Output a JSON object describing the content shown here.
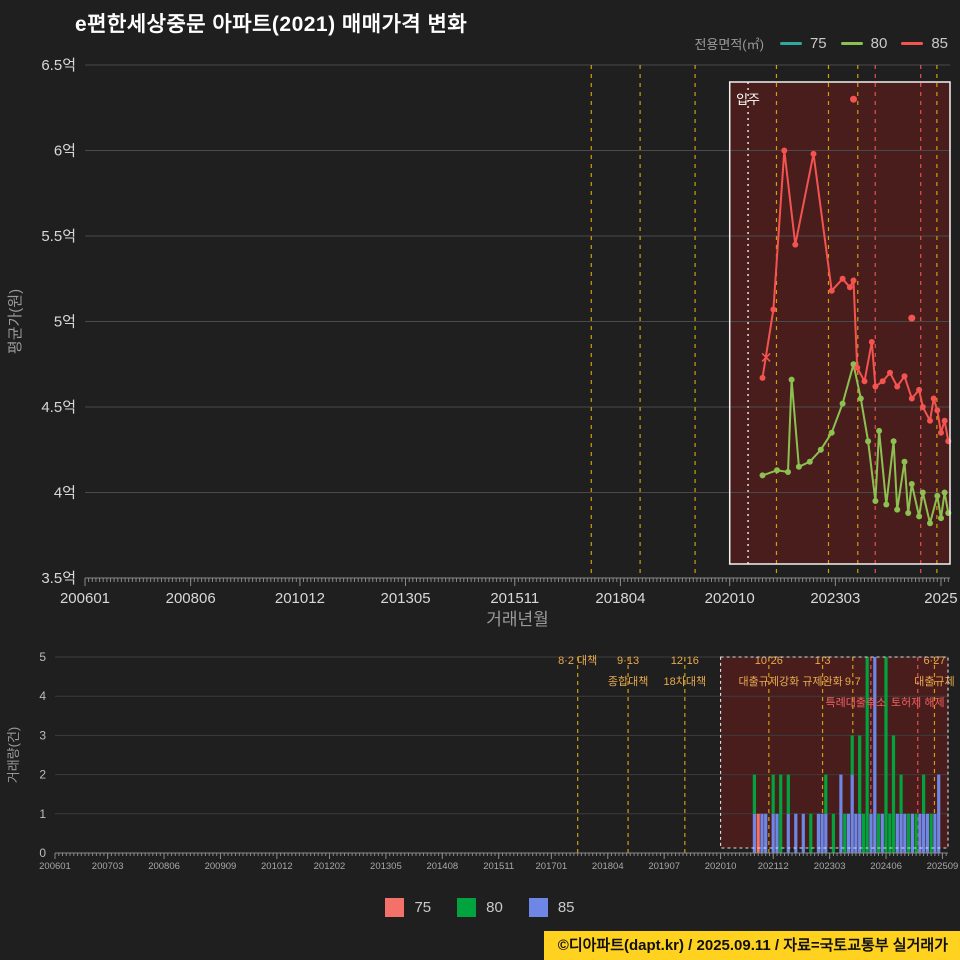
{
  "title": "e편한세상중문 아파트(2021) 매매가격 변화",
  "top_legend": {
    "label": "전용면적(㎡)",
    "items": [
      {
        "name": "75",
        "color": "#2fa8a0"
      },
      {
        "name": "80",
        "color": "#8cc152"
      },
      {
        "name": "85",
        "color": "#f4534f"
      }
    ]
  },
  "bottom_legend": {
    "items": [
      {
        "name": "75",
        "color": "#f4716a"
      },
      {
        "name": "80",
        "color": "#00a33e"
      },
      {
        "name": "85",
        "color": "#6e87e6"
      }
    ]
  },
  "attribution": "©디아파트(dapt.kr) / 2025.09.11 / 자료=국토교통부 실거래가",
  "colors": {
    "background": "#1f1f1f",
    "grid": "#4a4a4a",
    "grid_volume": "#3c3c3c",
    "axis": "#8a8a8a",
    "tick_text": "#d8d8d8",
    "muted_text": "#9a9a9a",
    "policy_yellow": "#cf9f0e",
    "policy_label": "#e8aa4e",
    "policy_red": "#e85050",
    "policy_red_label": "#f26060",
    "highlight_fill": "#6e1c1c",
    "highlight_border": "#f2f2f2",
    "move_in_line": "#ffffff",
    "attribution_bg": "#ffd21f",
    "attribution_text": "#111111"
  },
  "policies": [
    {
      "t": 2017.583,
      "kind": "yellow",
      "labels": [
        {
          "text": "8·2 대책",
          "row": 0
        }
      ]
    },
    {
      "t": 2018.7,
      "kind": "yellow",
      "labels": [
        {
          "text": "9·13",
          "row": 0
        },
        {
          "text": "종합대책",
          "row": 1
        }
      ]
    },
    {
      "t": 2019.958,
      "kind": "yellow",
      "labels": [
        {
          "text": "12·16",
          "row": 0
        },
        {
          "text": "18차대책",
          "row": 1
        }
      ]
    },
    {
      "t": 2021.82,
      "kind": "yellow",
      "labels": [
        {
          "text": "10·26",
          "row": 0
        },
        {
          "text": "대출규제강화",
          "row": 1
        }
      ]
    },
    {
      "t": 2023.01,
      "kind": "yellow",
      "labels": [
        {
          "text": "1·3",
          "row": 0
        },
        {
          "text": "규제완화",
          "row": 1
        }
      ]
    },
    {
      "t": 2023.68,
      "kind": "yellow",
      "labels": [
        {
          "text": "9·7",
          "row": 1
        }
      ]
    },
    {
      "t": 2024.08,
      "kind": "red",
      "labels": [
        {
          "text": "특례대출축소",
          "row": 2,
          "dx": -15
        }
      ]
    },
    {
      "t": 2025.12,
      "kind": "red",
      "labels": [
        {
          "text": "토허제 해제",
          "row": 2
        }
      ]
    },
    {
      "t": 2025.49,
      "kind": "yellow",
      "labels": [
        {
          "text": "6·27",
          "row": 0
        },
        {
          "text": "대출규제",
          "row": 1
        }
      ]
    }
  ],
  "chart_data": [
    {
      "type": "line",
      "xlabel": "거래년월",
      "ylabel": "평균가(원)",
      "ylim": [
        3.5,
        6.5
      ],
      "xlim": [
        2006.0,
        2025.79
      ],
      "yticks": [
        {
          "v": 6.5,
          "label": "6.5억"
        },
        {
          "v": 6.0,
          "label": "6억"
        },
        {
          "v": 5.5,
          "label": "5.5억"
        },
        {
          "v": 5.0,
          "label": "5억"
        },
        {
          "v": 4.5,
          "label": "4.5억"
        },
        {
          "v": 4.0,
          "label": "4억"
        },
        {
          "v": 3.5,
          "label": "3.5억"
        }
      ],
      "xticks": [
        {
          "t": 2006.0,
          "label": "200601"
        },
        {
          "t": 2008.417,
          "label": "200806"
        },
        {
          "t": 2010.917,
          "label": "201012"
        },
        {
          "t": 2013.333,
          "label": "201305"
        },
        {
          "t": 2015.833,
          "label": "201511"
        },
        {
          "t": 2018.25,
          "label": "201804"
        },
        {
          "t": 2020.75,
          "label": "202010"
        },
        {
          "t": 2023.167,
          "label": "202303"
        },
        {
          "t": 2025.583,
          "label": "2025"
        }
      ],
      "highlight": {
        "t0": 2020.75,
        "label": "입주",
        "move_in_t": 2021.17
      },
      "series": [
        {
          "name": "75",
          "color": "#2fa8a0",
          "points": []
        },
        {
          "name": "80",
          "color": "#8cc152",
          "points": [
            [
              2021.5,
              4.1
            ],
            [
              2021.833,
              4.13
            ],
            [
              2022.083,
              4.12
            ],
            [
              2022.167,
              4.66
            ],
            [
              2022.333,
              4.15
            ],
            [
              2022.583,
              4.18
            ],
            [
              2022.833,
              4.25
            ],
            [
              2023.083,
              4.35
            ],
            [
              2023.333,
              4.52
            ],
            [
              2023.583,
              4.75
            ],
            [
              2023.75,
              4.55
            ],
            [
              2023.917,
              4.3
            ],
            [
              2024.083,
              3.95
            ],
            [
              2024.167,
              4.36
            ],
            [
              2024.333,
              3.93
            ],
            [
              2024.5,
              4.3
            ],
            [
              2024.583,
              3.9
            ],
            [
              2024.75,
              4.18
            ],
            [
              2024.833,
              3.88
            ],
            [
              2024.917,
              4.05
            ],
            [
              2025.083,
              3.86
            ],
            [
              2025.167,
              4.0
            ],
            [
              2025.333,
              3.82
            ],
            [
              2025.5,
              3.98
            ],
            [
              2025.583,
              3.85
            ],
            [
              2025.667,
              4.0
            ],
            [
              2025.75,
              3.88
            ]
          ]
        },
        {
          "name": "85",
          "color": "#f4534f",
          "points": [
            [
              2021.5,
              4.67
            ],
            [
              2021.75,
              5.07
            ],
            [
              2022.0,
              6.0
            ],
            [
              2022.25,
              5.45
            ],
            [
              2022.667,
              5.98
            ],
            [
              2023.083,
              5.18
            ],
            [
              2023.333,
              5.25
            ],
            [
              2023.5,
              5.2
            ],
            [
              2023.583,
              5.24
            ],
            [
              2023.667,
              4.73
            ],
            [
              2023.833,
              4.65
            ],
            [
              2024.0,
              4.88
            ],
            [
              2024.083,
              4.62
            ],
            [
              2024.25,
              4.65
            ],
            [
              2024.417,
              4.7
            ],
            [
              2024.583,
              4.62
            ],
            [
              2024.75,
              4.68
            ],
            [
              2024.917,
              4.55
            ],
            [
              2025.083,
              4.6
            ],
            [
              2025.167,
              4.5
            ],
            [
              2025.333,
              4.42
            ],
            [
              2025.417,
              4.55
            ],
            [
              2025.5,
              4.48
            ],
            [
              2025.583,
              4.35
            ],
            [
              2025.667,
              4.42
            ],
            [
              2025.75,
              4.3
            ]
          ],
          "isolated": [
            [
              2023.583,
              6.3
            ],
            [
              2024.917,
              5.02
            ]
          ],
          "cross_markers": [
            [
              2021.583,
              4.79
            ]
          ]
        }
      ]
    },
    {
      "type": "bar",
      "ylabel": "거래량(건)",
      "ylim": [
        0,
        5
      ],
      "xlim": [
        2006.0,
        2025.79
      ],
      "yticks": [
        0,
        1,
        2,
        3,
        4,
        5
      ],
      "xticks": [
        {
          "t": 2006.0,
          "label": "200601"
        },
        {
          "t": 2007.167,
          "label": "200703"
        },
        {
          "t": 2008.417,
          "label": "200806"
        },
        {
          "t": 2009.667,
          "label": "200909"
        },
        {
          "t": 2010.917,
          "label": "201012"
        },
        {
          "t": 2012.083,
          "label": "201202"
        },
        {
          "t": 2013.333,
          "label": "201305"
        },
        {
          "t": 2014.583,
          "label": "201408"
        },
        {
          "t": 2015.833,
          "label": "201511"
        },
        {
          "t": 2017.0,
          "label": "201701"
        },
        {
          "t": 2018.25,
          "label": "201804"
        },
        {
          "t": 2019.5,
          "label": "201907"
        },
        {
          "t": 2020.75,
          "label": "202010"
        },
        {
          "t": 2021.917,
          "label": "202112"
        },
        {
          "t": 2023.167,
          "label": "202303"
        },
        {
          "t": 2024.417,
          "label": "202406"
        },
        {
          "t": 2025.667,
          "label": "202509"
        }
      ],
      "highlight": {
        "t0": 2020.75
      },
      "stack_order": [
        "75",
        "85",
        "80"
      ],
      "colors": {
        "75": "#f4716a",
        "80": "#00a33e",
        "85": "#6e87e6"
      },
      "months": [
        {
          "t": 2021.5,
          "v": [
            0,
            1,
            1
          ]
        },
        {
          "t": 2021.583,
          "v": [
            1,
            0,
            0
          ]
        },
        {
          "t": 2021.667,
          "v": [
            0,
            0,
            1
          ]
        },
        {
          "t": 2021.75,
          "v": [
            0,
            0,
            1
          ]
        },
        {
          "t": 2021.917,
          "v": [
            0,
            1,
            1
          ]
        },
        {
          "t": 2022.0,
          "v": [
            0,
            0,
            1
          ]
        },
        {
          "t": 2022.083,
          "v": [
            0,
            2,
            0
          ]
        },
        {
          "t": 2022.25,
          "v": [
            0,
            1,
            1
          ]
        },
        {
          "t": 2022.417,
          "v": [
            0,
            0,
            1
          ]
        },
        {
          "t": 2022.583,
          "v": [
            0,
            0,
            1
          ]
        },
        {
          "t": 2022.75,
          "v": [
            0,
            1,
            0
          ]
        },
        {
          "t": 2022.917,
          "v": [
            0,
            0,
            1
          ]
        },
        {
          "t": 2023.0,
          "v": [
            0,
            0,
            1
          ]
        },
        {
          "t": 2023.083,
          "v": [
            0,
            1,
            1
          ]
        },
        {
          "t": 2023.25,
          "v": [
            0,
            1,
            0
          ]
        },
        {
          "t": 2023.417,
          "v": [
            0,
            0,
            2
          ]
        },
        {
          "t": 2023.5,
          "v": [
            0,
            1,
            0
          ]
        },
        {
          "t": 2023.583,
          "v": [
            0,
            0,
            1
          ]
        },
        {
          "t": 2023.667,
          "v": [
            0,
            1,
            2
          ]
        },
        {
          "t": 2023.75,
          "v": [
            0,
            0,
            1
          ]
        },
        {
          "t": 2023.833,
          "v": [
            0,
            2,
            1
          ]
        },
        {
          "t": 2023.917,
          "v": [
            0,
            1,
            0
          ]
        },
        {
          "t": 2024.0,
          "v": [
            0,
            5,
            0
          ]
        },
        {
          "t": 2024.083,
          "v": [
            0,
            0,
            1
          ]
        },
        {
          "t": 2024.167,
          "v": [
            0,
            0,
            5
          ]
        },
        {
          "t": 2024.25,
          "v": [
            0,
            1,
            0
          ]
        },
        {
          "t": 2024.333,
          "v": [
            0,
            0,
            1
          ]
        },
        {
          "t": 2024.417,
          "v": [
            0,
            5,
            0
          ]
        },
        {
          "t": 2024.5,
          "v": [
            0,
            1,
            0
          ]
        },
        {
          "t": 2024.583,
          "v": [
            0,
            3,
            0
          ]
        },
        {
          "t": 2024.667,
          "v": [
            0,
            0,
            1
          ]
        },
        {
          "t": 2024.75,
          "v": [
            0,
            1,
            1
          ]
        },
        {
          "t": 2024.833,
          "v": [
            0,
            0,
            1
          ]
        },
        {
          "t": 2024.917,
          "v": [
            0,
            1,
            0
          ]
        },
        {
          "t": 2025.0,
          "v": [
            0,
            0,
            1
          ]
        },
        {
          "t": 2025.083,
          "v": [
            0,
            1,
            0
          ]
        },
        {
          "t": 2025.167,
          "v": [
            0,
            0,
            1
          ]
        },
        {
          "t": 2025.25,
          "v": [
            0,
            1,
            1
          ]
        },
        {
          "t": 2025.333,
          "v": [
            0,
            0,
            1
          ]
        },
        {
          "t": 2025.417,
          "v": [
            0,
            1,
            0
          ]
        },
        {
          "t": 2025.5,
          "v": [
            0,
            0,
            1
          ]
        },
        {
          "t": 2025.583,
          "v": [
            0,
            0,
            2
          ]
        }
      ]
    }
  ]
}
